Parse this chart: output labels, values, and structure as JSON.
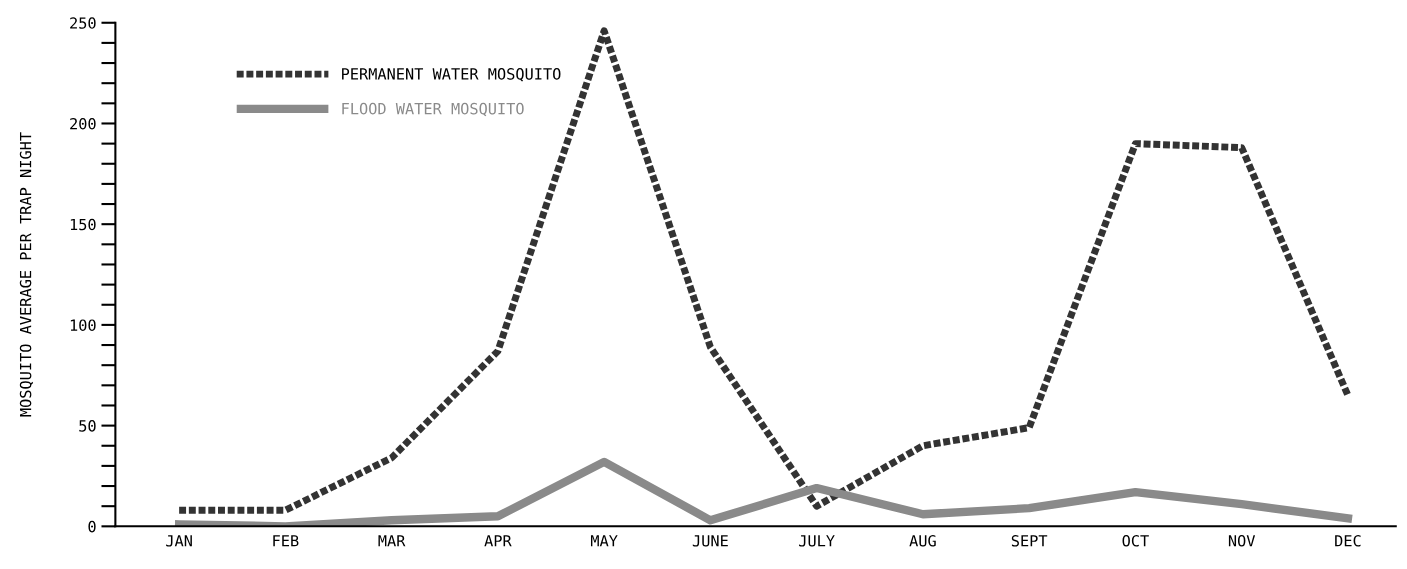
{
  "chart_data": {
    "type": "line",
    "ylabel": "MOSQUITO AVERAGE PER TRAP NIGHT",
    "categories": [
      "JAN",
      "FEB",
      "MAR",
      "APR",
      "MAY",
      "JUNE",
      "JULY",
      "AUG",
      "SEPT",
      "OCT",
      "NOV",
      "DEC"
    ],
    "series": [
      {
        "name": "PERMANENT WATER MOSQUITO",
        "color": "#333333",
        "line_style": "dotted",
        "values": [
          8,
          8,
          34,
          87,
          246,
          89,
          10,
          40,
          49,
          190,
          188,
          65
        ]
      },
      {
        "name": "FLOOD WATER MOSQUITO",
        "color": "#8a8a8a",
        "line_style": "solid",
        "values": [
          1,
          0,
          3,
          5,
          32,
          3,
          19,
          6,
          9,
          17,
          11,
          4
        ]
      }
    ],
    "ylim": [
      0,
      250
    ],
    "yticks": [
      0,
      {
        "value": 10,
        "label": null
      },
      {
        "value": 20,
        "label": null
      },
      {
        "value": 30,
        "label": null
      },
      {
        "value": 40,
        "label": null
      },
      50,
      {
        "value": 60,
        "label": null
      },
      {
        "value": 70,
        "label": null
      },
      {
        "value": 80,
        "label": null
      },
      {
        "value": 90,
        "label": null
      },
      100,
      {
        "value": 110,
        "label": null
      },
      {
        "value": 120,
        "label": null
      },
      {
        "value": 130,
        "label": null
      },
      {
        "value": 140,
        "label": null
      },
      150,
      {
        "value": 160,
        "label": null
      },
      {
        "value": 170,
        "label": null
      },
      {
        "value": 180,
        "label": null
      },
      {
        "value": 190,
        "label": null
      },
      200,
      {
        "value": 210,
        "label": null
      },
      {
        "value": 220,
        "label": null
      },
      {
        "value": 230,
        "label": null
      },
      {
        "value": 240,
        "label": null
      },
      250
    ],
    "grid": false,
    "legend": "top left"
  }
}
